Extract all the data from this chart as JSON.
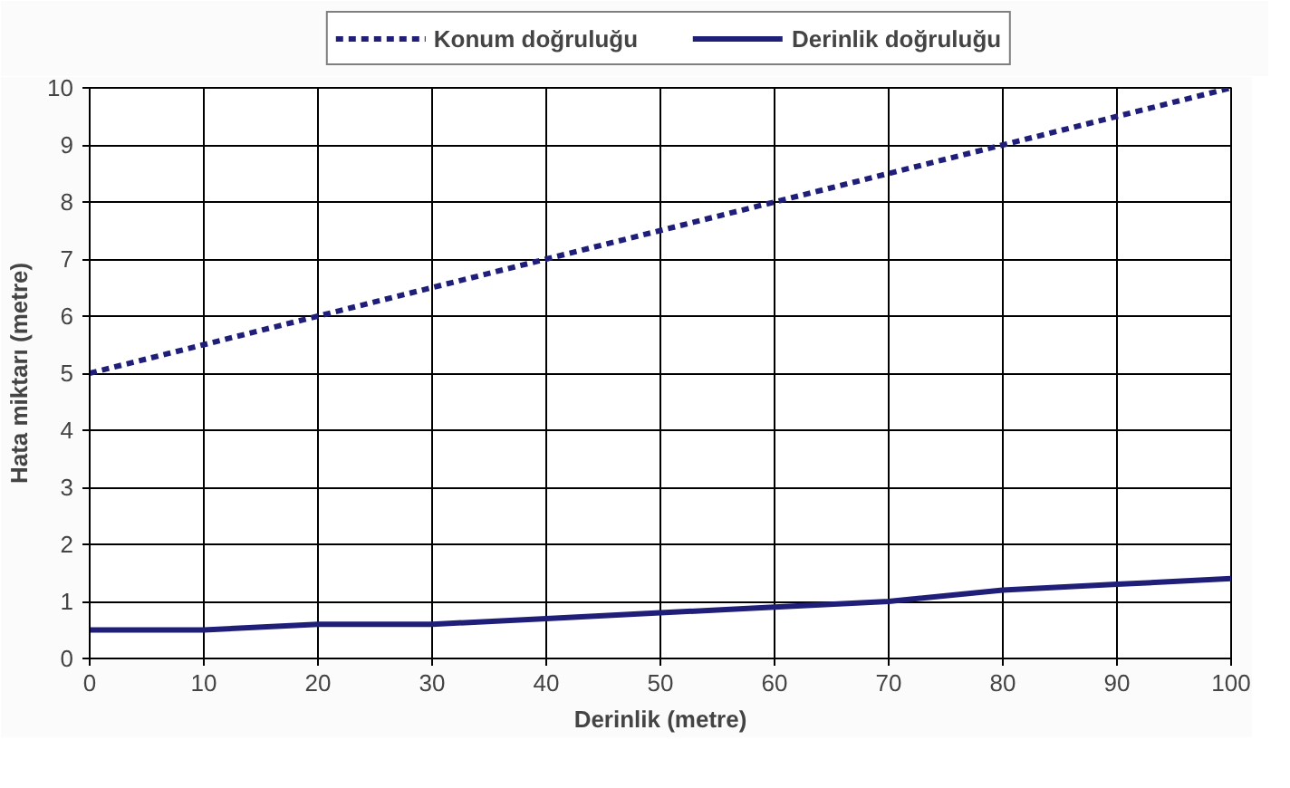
{
  "chart_data": {
    "type": "line",
    "xlabel": "Derinlik (metre)",
    "ylabel": "Hata miktarı (metre)",
    "x": [
      0,
      10,
      20,
      30,
      40,
      50,
      60,
      70,
      80,
      90,
      100
    ],
    "series": [
      {
        "name": "Konum doğruluğu",
        "color": "#1f1f7a",
        "line_style": "dashed",
        "values": [
          5,
          5.5,
          6,
          6.5,
          7,
          7.5,
          8,
          8.5,
          9,
          9.5,
          10
        ]
      },
      {
        "name": "Derinlik doğruluğu",
        "color": "#1f1f7a",
        "line_style": "solid",
        "values": [
          0.5,
          0.5,
          0.6,
          0.6,
          0.7,
          0.8,
          0.9,
          1.0,
          1.2,
          1.3,
          1.4
        ]
      }
    ],
    "xlim": [
      0,
      100
    ],
    "ylim": [
      0,
      10
    ],
    "xticks": [
      0,
      10,
      20,
      30,
      40,
      50,
      60,
      70,
      80,
      90,
      100
    ],
    "yticks": [
      0,
      1,
      2,
      3,
      4,
      5,
      6,
      7,
      8,
      9,
      10
    ],
    "grid": true,
    "legend": "top",
    "marker": "none"
  }
}
